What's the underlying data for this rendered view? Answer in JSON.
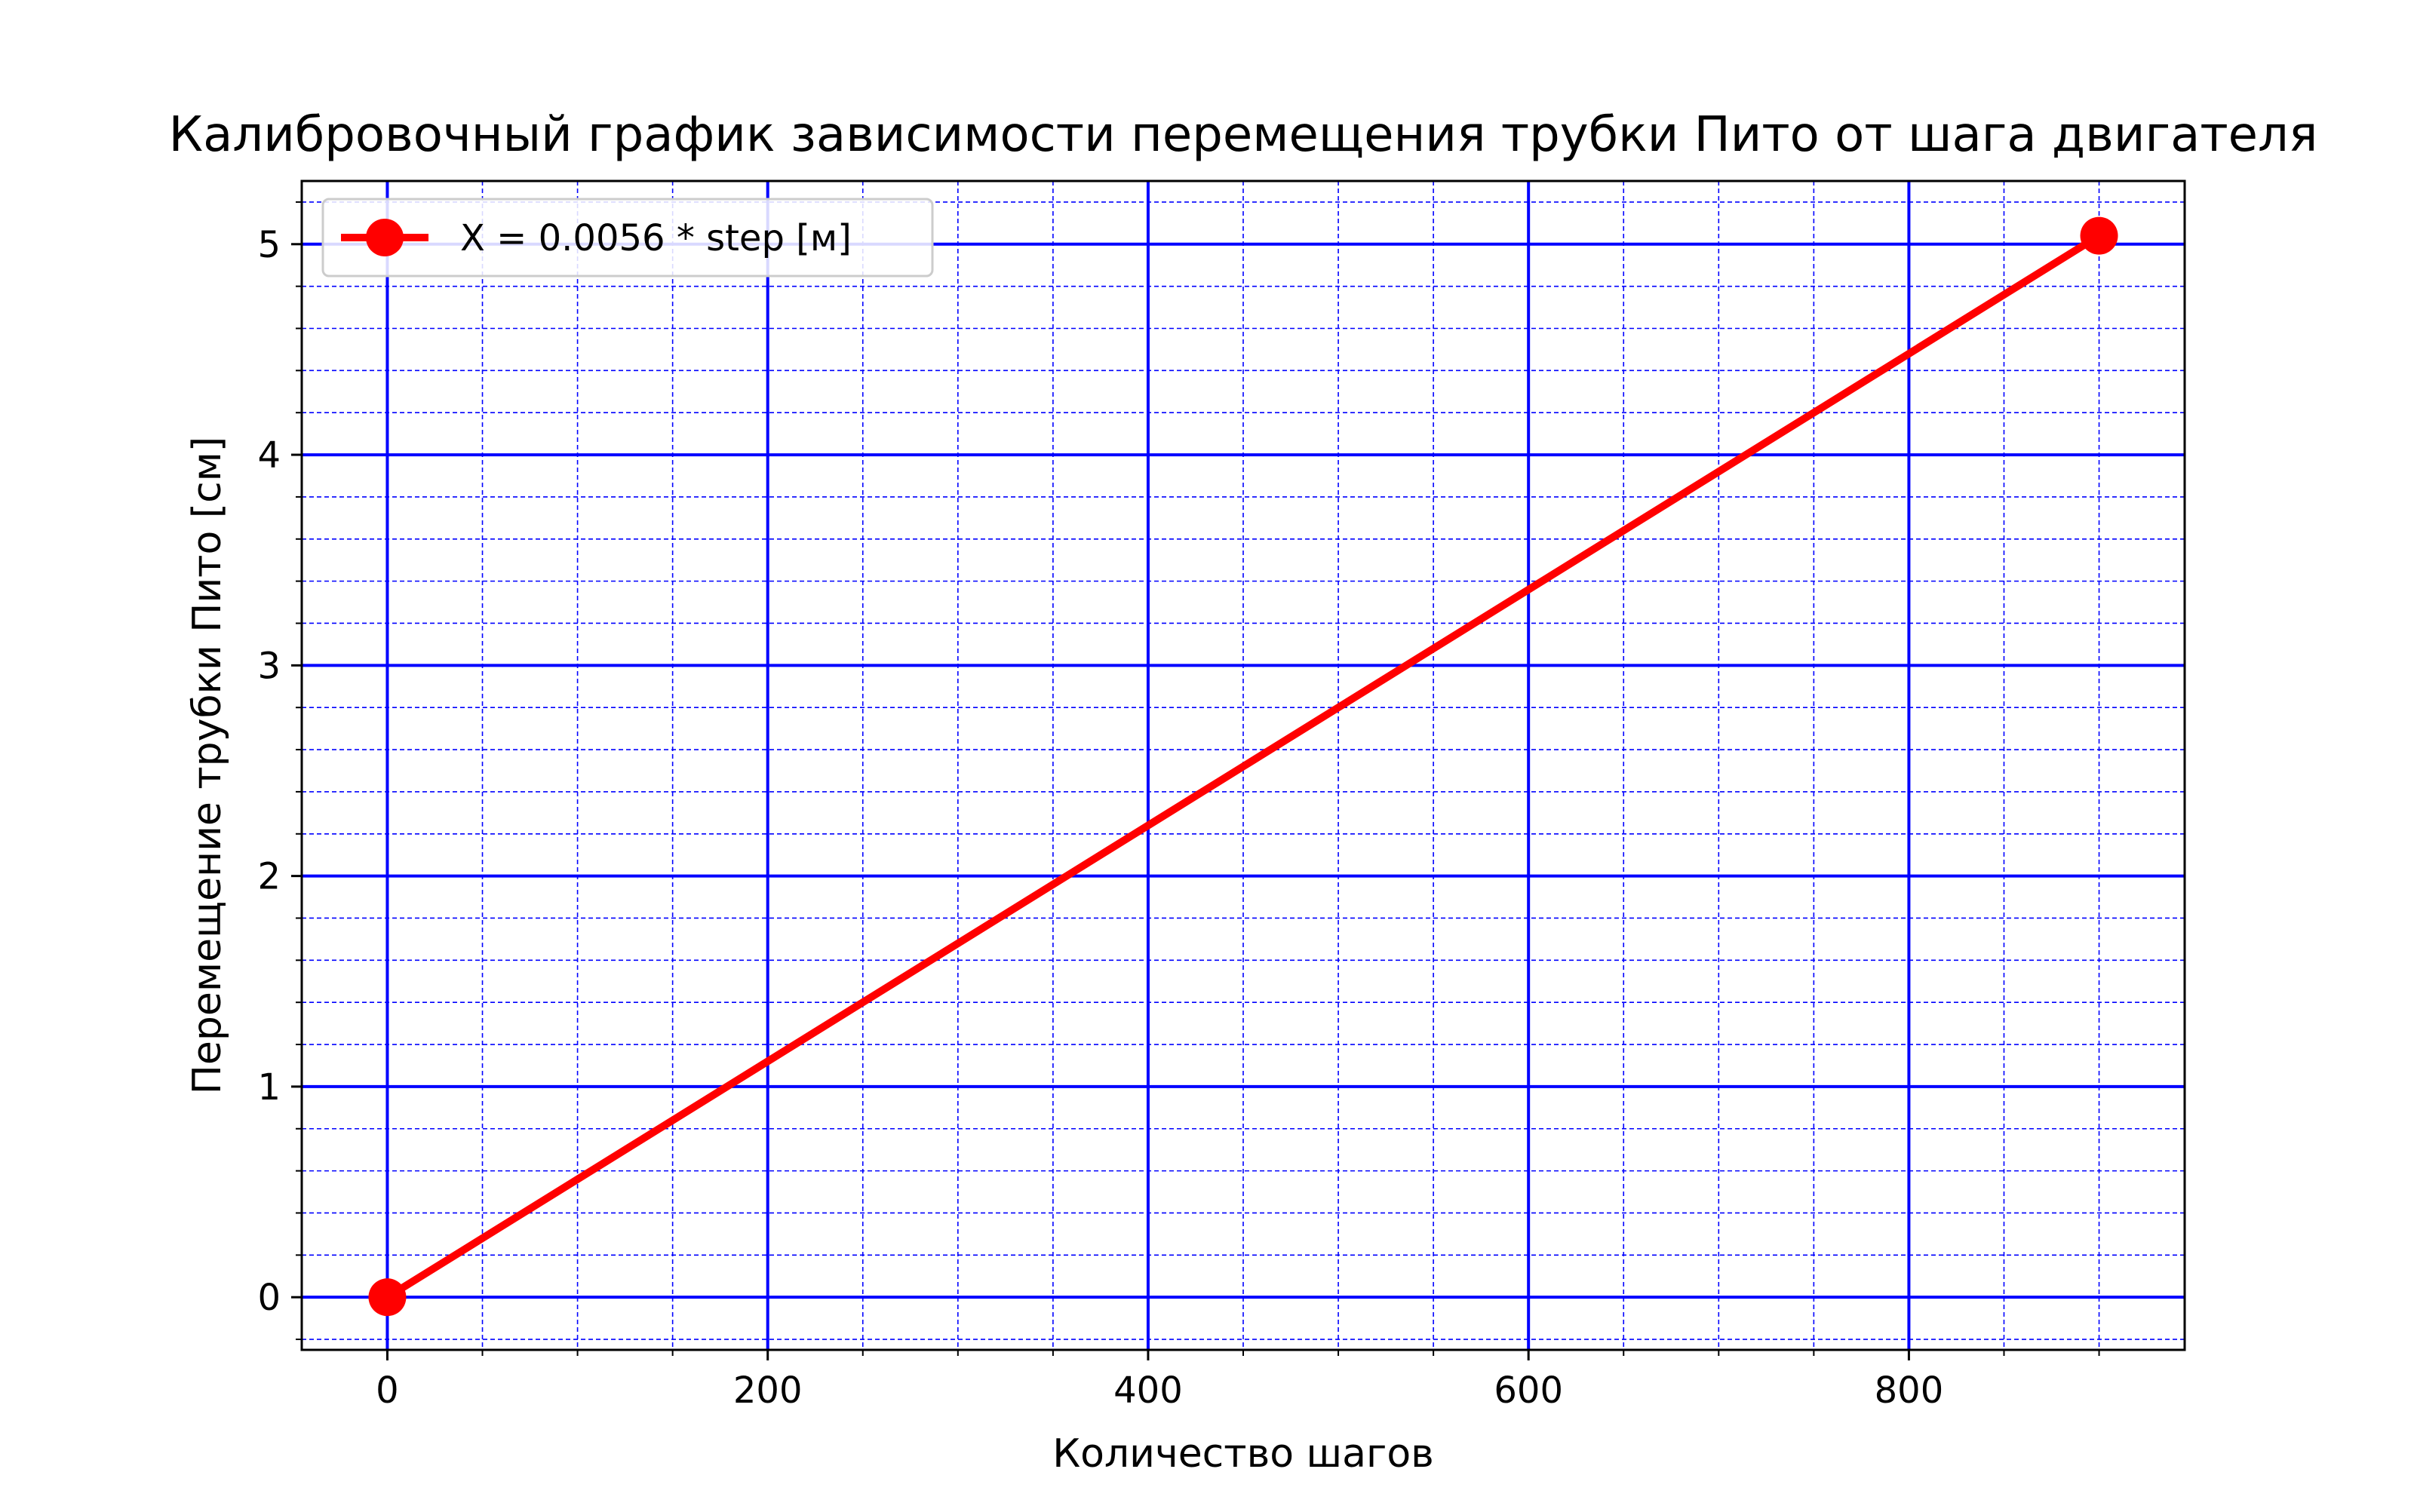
{
  "chart_data": {
    "type": "line",
    "title": "Калибровочный график зависимости перемещения трубки Пито от шага двигателя",
    "xlabel": "Количество шагов",
    "ylabel": "Перемещение трубки Пито [см]",
    "xlim": [
      -45,
      945
    ],
    "ylim": [
      -0.25,
      5.3
    ],
    "x_ticks": [
      0,
      200,
      400,
      600,
      800
    ],
    "y_ticks": [
      0,
      1,
      2,
      3,
      4,
      5
    ],
    "x_tick_labels": [
      "0",
      "200",
      "400",
      "600",
      "800"
    ],
    "y_tick_labels": [
      "0",
      "1",
      "2",
      "3",
      "4",
      "5"
    ],
    "x_minor_step": 50,
    "y_minor_step": 0.2,
    "grid": true,
    "grid_color": "#0000ff",
    "legend_position": "top-left",
    "series": [
      {
        "name": "X = 0.0056 * step [м]",
        "color": "#ff0000",
        "marker": "circle",
        "x": [
          0,
          900
        ],
        "y": [
          0,
          5.04
        ]
      }
    ]
  }
}
